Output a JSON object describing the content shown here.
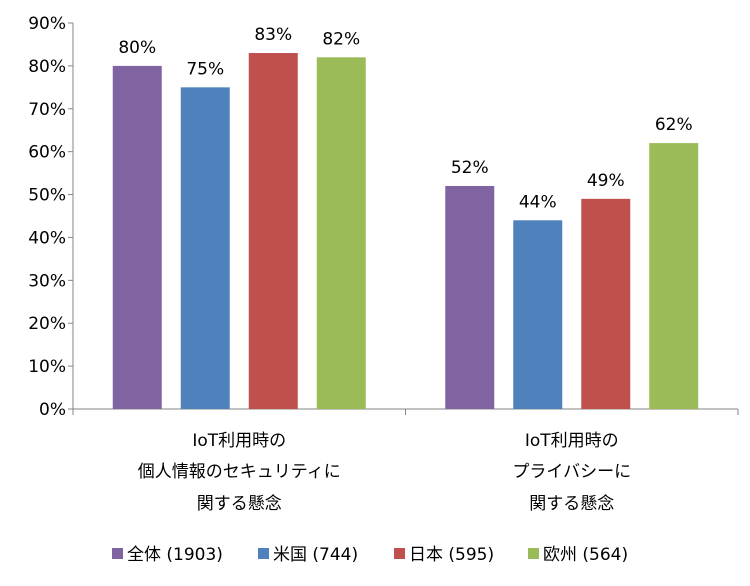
{
  "chart_data": {
    "type": "bar",
    "categories": [
      {
        "lines": [
          "IoT利用時の",
          "個人情報のセキュリティに",
          "関する懸念"
        ]
      },
      {
        "lines": [
          "IoT利用時の",
          "プライバシーに",
          "関する懸念"
        ]
      }
    ],
    "series": [
      {
        "name": "全体 (1903)",
        "color": "#8064A2",
        "values": [
          80,
          52
        ],
        "labels": [
          "80%",
          "52%"
        ]
      },
      {
        "name": "米国 (744)",
        "color": "#4F81BD",
        "values": [
          75,
          44
        ],
        "labels": [
          "75%",
          "44%"
        ]
      },
      {
        "name": "日本 (595)",
        "color": "#C0504D",
        "values": [
          83,
          49
        ],
        "labels": [
          "83%",
          "49%"
        ]
      },
      {
        "name": "欧州 (564)",
        "color": "#9BBB59",
        "values": [
          82,
          62
        ],
        "labels": [
          "82%",
          "62%"
        ]
      }
    ],
    "yticks": [
      "0%",
      "10%",
      "20%",
      "30%",
      "40%",
      "50%",
      "60%",
      "70%",
      "80%",
      "90%"
    ],
    "ylim": [
      0,
      90
    ],
    "grid": false,
    "legend_position": "bottom"
  }
}
